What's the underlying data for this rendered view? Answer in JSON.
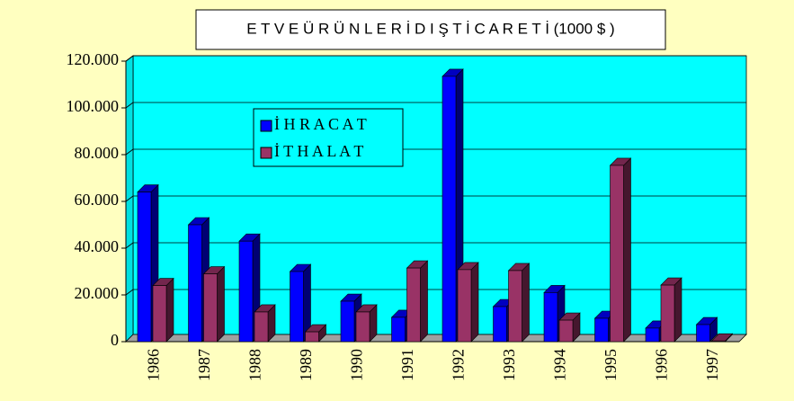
{
  "chart_data": {
    "type": "bar3d",
    "title": "E T V E Ü R Ü N L E R İ D I Ş T İ C A R E T İ (1000 $ )",
    "categories": [
      "1986",
      "1987",
      "1988",
      "1989",
      "1990",
      "1991",
      "1992",
      "1993",
      "1994",
      "1995",
      "1996",
      "1997"
    ],
    "series": [
      {
        "name": "İ H R A C A T",
        "color": "#0000ff",
        "values": [
          64000,
          50000,
          43000,
          30000,
          17300,
          10400,
          113500,
          15000,
          21000,
          10000,
          5800,
          7300
        ]
      },
      {
        "name": "İ T H A L A T",
        "color": "#993366",
        "values": [
          24000,
          29000,
          12700,
          4200,
          12700,
          31500,
          30800,
          30400,
          9200,
          75400,
          24200,
          300
        ]
      }
    ],
    "ylim": [
      0,
      120000
    ],
    "yticks": [
      0,
      {
        "value": 20000,
        "label": "20.000"
      },
      {
        "value": 40000,
        "label": "40.000"
      },
      {
        "value": 60000,
        "label": "60.000"
      },
      {
        "value": 80000,
        "label": "80.000"
      },
      {
        "value": 100000,
        "label": "100.000"
      },
      {
        "value": 120000,
        "label": "120.000"
      }
    ],
    "grid": true
  }
}
